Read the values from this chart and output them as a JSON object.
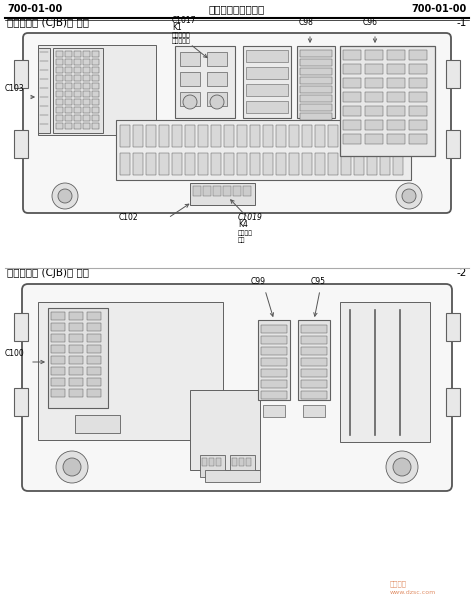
{
  "page_bg": "#ffffff",
  "header_left": "700-01-00",
  "header_center": "保险丝和继电器信息",
  "header_right": "700-01-00",
  "sec1_title": "中央接线盒 (CJB)， 顶端",
  "sec1_num": "-1",
  "sec2_title": "中央连接盒 (CJB)， 后方",
  "sec2_num": "-2",
  "lbl_C1017": "C1017",
  "lbl_K1": "K1",
  "lbl_K1a": "后门风电路",
  "lbl_K1b": "除雾洗电器",
  "lbl_C98": "C98",
  "lbl_C96": "C96",
  "lbl_C103": "C103",
  "lbl_C102": "C102",
  "lbl_C1019": "C1019",
  "lbl_K4": "K4",
  "lbl_K4a": "燃油泵洗",
  "lbl_K4b": "电器",
  "lbl_C99": "C99",
  "lbl_C95": "C95",
  "lbl_C100": "C100",
  "watermark_url": "www.dzsc.com",
  "lc": "#555555",
  "ec": "#606060",
  "fc_main": "#f2f2f2",
  "fc_inner": "#e0e0e0",
  "fc_dark": "#c8c8c8"
}
